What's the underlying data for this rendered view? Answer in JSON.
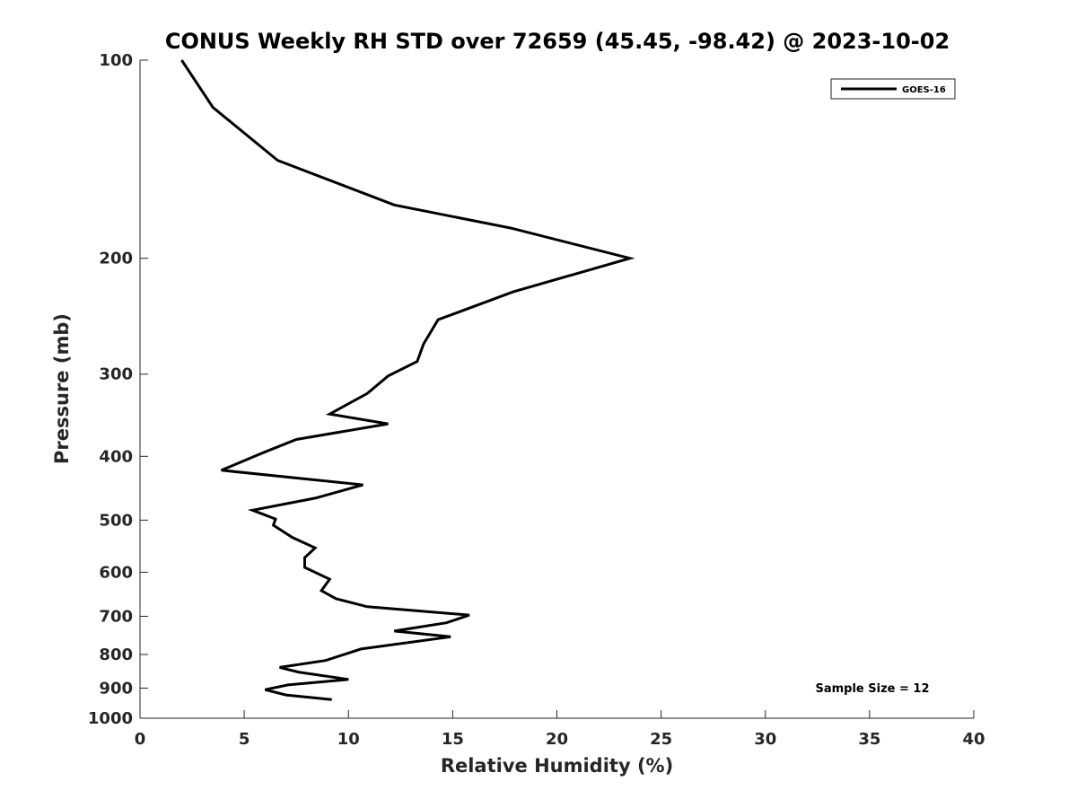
{
  "chart_data": {
    "type": "line",
    "title": "CONUS Weekly RH STD over 72659 (45.45, -98.42) @ 2023-10-02",
    "xlabel": "Relative Humidity (%)",
    "ylabel": "Pressure (mb)",
    "xlim": [
      0,
      40
    ],
    "ylim": [
      100,
      1000
    ],
    "y_scale": "log",
    "y_reversed": true,
    "x_ticks": [
      0,
      5,
      10,
      15,
      20,
      25,
      30,
      35,
      40
    ],
    "x_tick_labels": [
      "0",
      "5",
      "10",
      "15",
      "20",
      "25",
      "30",
      "35",
      "40"
    ],
    "y_ticks": [
      100,
      200,
      300,
      400,
      500,
      600,
      700,
      800,
      900,
      1000
    ],
    "y_tick_labels": [
      "100",
      "200",
      "300",
      "400",
      "500",
      "600",
      "700",
      "800",
      "900",
      "1000"
    ],
    "grid": false,
    "legend_position": "top-right",
    "series": [
      {
        "name": "GOES-16",
        "color": "#000000",
        "x": [
          2.0,
          3.5,
          6.6,
          12.2,
          17.8,
          23.5,
          17.9,
          14.3,
          13.6,
          13.3,
          11.9,
          10.9,
          9.1,
          11.9,
          7.5,
          5.9,
          3.9,
          10.7,
          8.4,
          5.4,
          6.5,
          6.4,
          7.3,
          8.4,
          7.9,
          7.9,
          9.1,
          8.7,
          9.4,
          10.9,
          15.8,
          14.7,
          12.2,
          14.9,
          10.6,
          8.9,
          6.7,
          7.6,
          10.0,
          7.1,
          6.0,
          7.0,
          9.2
        ],
        "y": [
          100,
          118,
          142,
          166,
          180,
          200,
          225,
          248,
          270,
          287,
          302,
          321,
          345,
          357,
          377,
          395,
          420,
          442,
          463,
          483,
          498,
          509,
          531,
          551,
          570,
          590,
          615,
          640,
          658,
          677,
          697,
          716,
          737,
          752,
          785,
          817,
          837,
          851,
          873,
          890,
          905,
          922,
          937
        ]
      }
    ],
    "annotations": [
      {
        "text": "Sample Size = 12"
      }
    ]
  }
}
